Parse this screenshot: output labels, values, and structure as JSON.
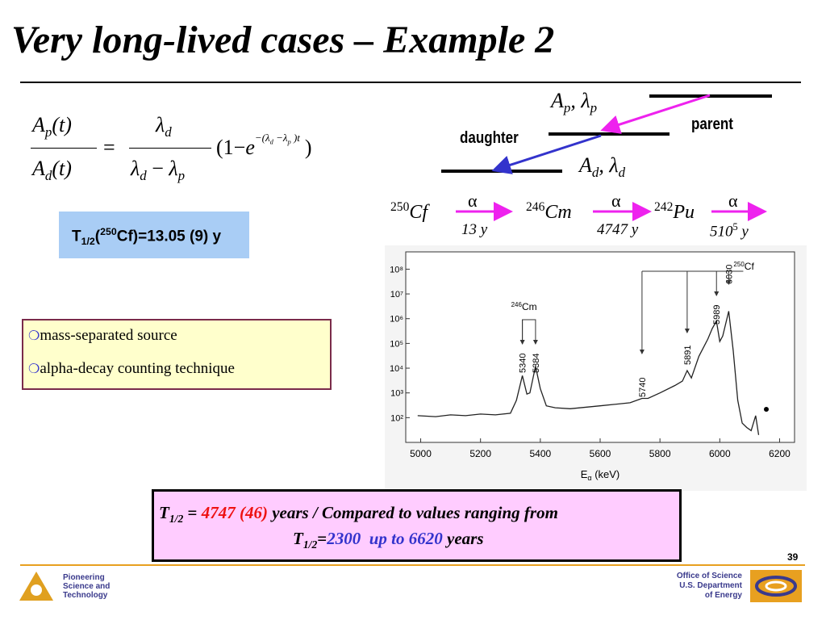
{
  "title": "Very long-lived cases – Example 2",
  "equation": {
    "lhs_numerator": {
      "symbol": "A",
      "subscript": "p",
      "argument": "(t)"
    },
    "lhs_denominator": {
      "symbol": "A",
      "subscript": "d",
      "argument": "(t)"
    },
    "equals": "=",
    "rhs_numerator": {
      "symbol": "λ",
      "subscript": "d"
    },
    "rhs_denominator": {
      "symbol": "λ",
      "subscript": "d",
      "operator": "−",
      "symbol2": "λ",
      "subscript2": "p"
    },
    "factor_open": "(1−",
    "base": "e",
    "exponent": [
      "−(λ",
      "d",
      " −λ",
      "p",
      " )t"
    ],
    "factor_close": ")"
  },
  "half_life_box": {
    "symbol": "T",
    "subscript": "1/2",
    "open": "(",
    "mass": "250",
    "rest": "Cf)=13.05 (9) y"
  },
  "bullets": [
    "mass-separated source",
    "alpha-decay counting technique"
  ],
  "decay_diagram": {
    "parent_activity": {
      "symbol": "A",
      "subscript": "p",
      "separator": ", ",
      "symbol2": "λ",
      "subscript2": "p"
    },
    "daughter_activity": {
      "symbol": "A",
      "subscript": "d",
      "separator": ", ",
      "symbol2": "λ",
      "subscript2": "d"
    },
    "parent": "parent",
    "daughter": "daughter"
  },
  "chain": {
    "nuclides": [
      {
        "mass": "250",
        "symbol": "Cf"
      },
      {
        "mass": "246",
        "symbol": "Cm"
      },
      {
        "mass": "242",
        "symbol": "Pu"
      }
    ],
    "decays": [
      {
        "mode": "α",
        "half_life": "13 y"
      },
      {
        "mode": "α",
        "half_life": "4747 y"
      },
      {
        "mode": "α",
        "half_life": "510",
        "exponent": "5",
        "unit": " y"
      }
    ]
  },
  "spectrum": {
    "x_label": "E",
    "x_label_subscript": "α",
    "x_label_unit": " (keV)",
    "xlim": [
      4950,
      6250
    ],
    "xticks": [
      5000,
      5200,
      5400,
      5600,
      5800,
      6000,
      6200
    ],
    "ylim": [
      10,
      500000000
    ],
    "log_y": true,
    "yticks": [
      {
        "value": 100,
        "label": "10²"
      },
      {
        "value": 1000,
        "label": "10³"
      },
      {
        "value": 10000,
        "label": "10⁴"
      },
      {
        "value": 100000,
        "label": "10⁵"
      },
      {
        "value": 1000000,
        "label": "10⁶"
      },
      {
        "value": 10000000,
        "label": "10⁷"
      },
      {
        "value": 100000000,
        "label": "10⁸"
      }
    ],
    "x": [
      4990,
      5050,
      5100,
      5150,
      5200,
      5250,
      5300,
      5320,
      5340,
      5355,
      5365,
      5384,
      5400,
      5420,
      5450,
      5500,
      5600,
      5700,
      5740,
      5760,
      5800,
      5850,
      5875,
      5891,
      5905,
      5930,
      5960,
      5975,
      5989,
      6000,
      6010,
      6030,
      6045,
      6060,
      6075,
      6090,
      6105,
      6120,
      6130
    ],
    "counts": [
      120,
      110,
      130,
      120,
      140,
      130,
      150,
      500,
      5000,
      900,
      1000,
      12000,
      1500,
      300,
      250,
      230,
      300,
      400,
      600,
      600,
      1000,
      2000,
      3000,
      8000,
      4000,
      30000,
      150000,
      400000,
      800000,
      120000,
      200000,
      2000000,
      50000,
      500,
      60,
      40,
      30,
      120,
      20
    ],
    "peaks": [
      5340,
      5384,
      5740,
      5891,
      5989,
      6030
    ],
    "group_labels": [
      {
        "mass": "246",
        "symbol": "Cm"
      },
      {
        "mass": "250",
        "symbol": "Cf"
      }
    ]
  },
  "result_box": {
    "line1": {
      "symbol": "T",
      "subscript": "1/2",
      "equals": " = ",
      "value": "4747 (46)",
      "text": " years / Compared to values ranging from"
    },
    "line2": {
      "symbol": "T",
      "subscript": "1/2",
      "equals": "=",
      "low": "2300",
      "high": "  up to 6620",
      "text": " years"
    }
  },
  "page_number": "39",
  "footer": {
    "left": [
      "Pioneering",
      "Science and",
      "Technology"
    ],
    "right": [
      "Office of Science",
      "U.S. Department",
      "of Energy"
    ]
  }
}
